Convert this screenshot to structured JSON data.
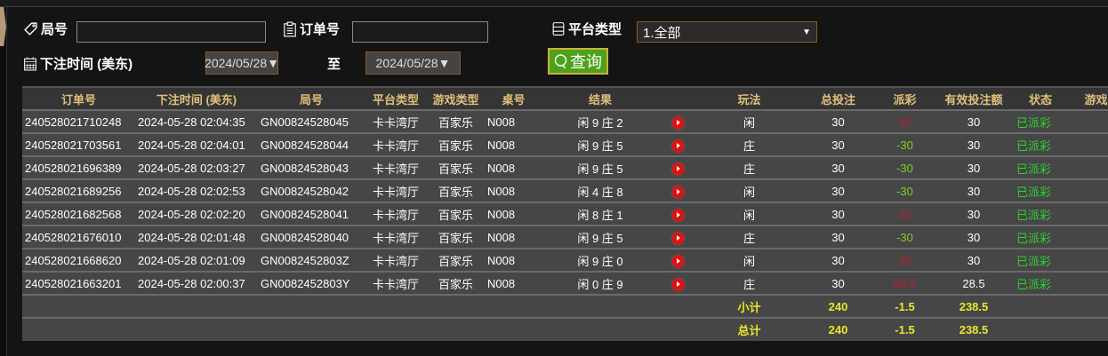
{
  "filters": {
    "round_label": "局号",
    "round_value": "",
    "order_label": "订单号",
    "order_value": "",
    "platform_label": "平台类型",
    "platform_value": "1.全部",
    "time_label": "下注时间 (美东)",
    "date_from": "2024/05/28▼",
    "to_label": "至",
    "date_to": "2024/05/28▼",
    "query_label": "查询"
  },
  "table": {
    "headers": [
      "订单号",
      "下注时间 (美东)",
      "局号",
      "平台类型",
      "游戏类型",
      "桌号",
      "结果",
      "",
      "玩法",
      "总投注",
      "派彩",
      "有效投注额",
      "状态",
      "游戏"
    ],
    "rows": [
      {
        "order": "240528021710248",
        "time": "2024-05-28 02:04:35",
        "round": "GN00824528045",
        "platform": "卡卡湾厅",
        "game": "百家乐",
        "table": "N008",
        "result": "闲 9 庄 2",
        "play": "闲",
        "bet": "30",
        "payout": "30",
        "payout_color": "red",
        "valid": "30",
        "status": "已派彩"
      },
      {
        "order": "240528021703561",
        "time": "2024-05-28 02:04:01",
        "round": "GN00824528044",
        "platform": "卡卡湾厅",
        "game": "百家乐",
        "table": "N008",
        "result": "闲 9 庄 5",
        "play": "庄",
        "bet": "30",
        "payout": "-30",
        "payout_color": "green",
        "valid": "30",
        "status": "已派彩"
      },
      {
        "order": "240528021696389",
        "time": "2024-05-28 02:03:27",
        "round": "GN00824528043",
        "platform": "卡卡湾厅",
        "game": "百家乐",
        "table": "N008",
        "result": "闲 9 庄 5",
        "play": "庄",
        "bet": "30",
        "payout": "-30",
        "payout_color": "green",
        "valid": "30",
        "status": "已派彩"
      },
      {
        "order": "240528021689256",
        "time": "2024-05-28 02:02:53",
        "round": "GN00824528042",
        "platform": "卡卡湾厅",
        "game": "百家乐",
        "table": "N008",
        "result": "闲 4 庄 8",
        "play": "闲",
        "bet": "30",
        "payout": "-30",
        "payout_color": "green",
        "valid": "30",
        "status": "已派彩"
      },
      {
        "order": "240528021682568",
        "time": "2024-05-28 02:02:20",
        "round": "GN00824528041",
        "platform": "卡卡湾厅",
        "game": "百家乐",
        "table": "N008",
        "result": "闲 8 庄 1",
        "play": "闲",
        "bet": "30",
        "payout": "30",
        "payout_color": "red",
        "valid": "30",
        "status": "已派彩"
      },
      {
        "order": "240528021676010",
        "time": "2024-05-28 02:01:48",
        "round": "GN00824528040",
        "platform": "卡卡湾厅",
        "game": "百家乐",
        "table": "N008",
        "result": "闲 9 庄 5",
        "play": "庄",
        "bet": "30",
        "payout": "-30",
        "payout_color": "green",
        "valid": "30",
        "status": "已派彩"
      },
      {
        "order": "240528021668620",
        "time": "2024-05-28 02:01:09",
        "round": "GN0082452803Z",
        "platform": "卡卡湾厅",
        "game": "百家乐",
        "table": "N008",
        "result": "闲 9 庄 0",
        "play": "闲",
        "bet": "30",
        "payout": "30",
        "payout_color": "red",
        "valid": "30",
        "status": "已派彩"
      },
      {
        "order": "240528021663201",
        "time": "2024-05-28 02:00:37",
        "round": "GN0082452803Y",
        "platform": "卡卡湾厅",
        "game": "百家乐",
        "table": "N008",
        "result": "闲 0 庄 9",
        "play": "庄",
        "bet": "30",
        "payout": "28.5",
        "payout_color": "red",
        "valid": "28.5",
        "status": "已派彩"
      }
    ],
    "subtotal": {
      "label": "小计",
      "bet": "240",
      "payout": "-1.5",
      "valid": "238.5"
    },
    "total": {
      "label": "总计",
      "bet": "240",
      "payout": "-1.5",
      "valid": "238.5"
    }
  },
  "colors": {
    "accent_button": "#4ea11c",
    "header_text": "#e0c07a",
    "total_text": "#e8e82a",
    "win": "#7ad21e",
    "loss": "#b3203a",
    "status": "#2ed12e"
  }
}
